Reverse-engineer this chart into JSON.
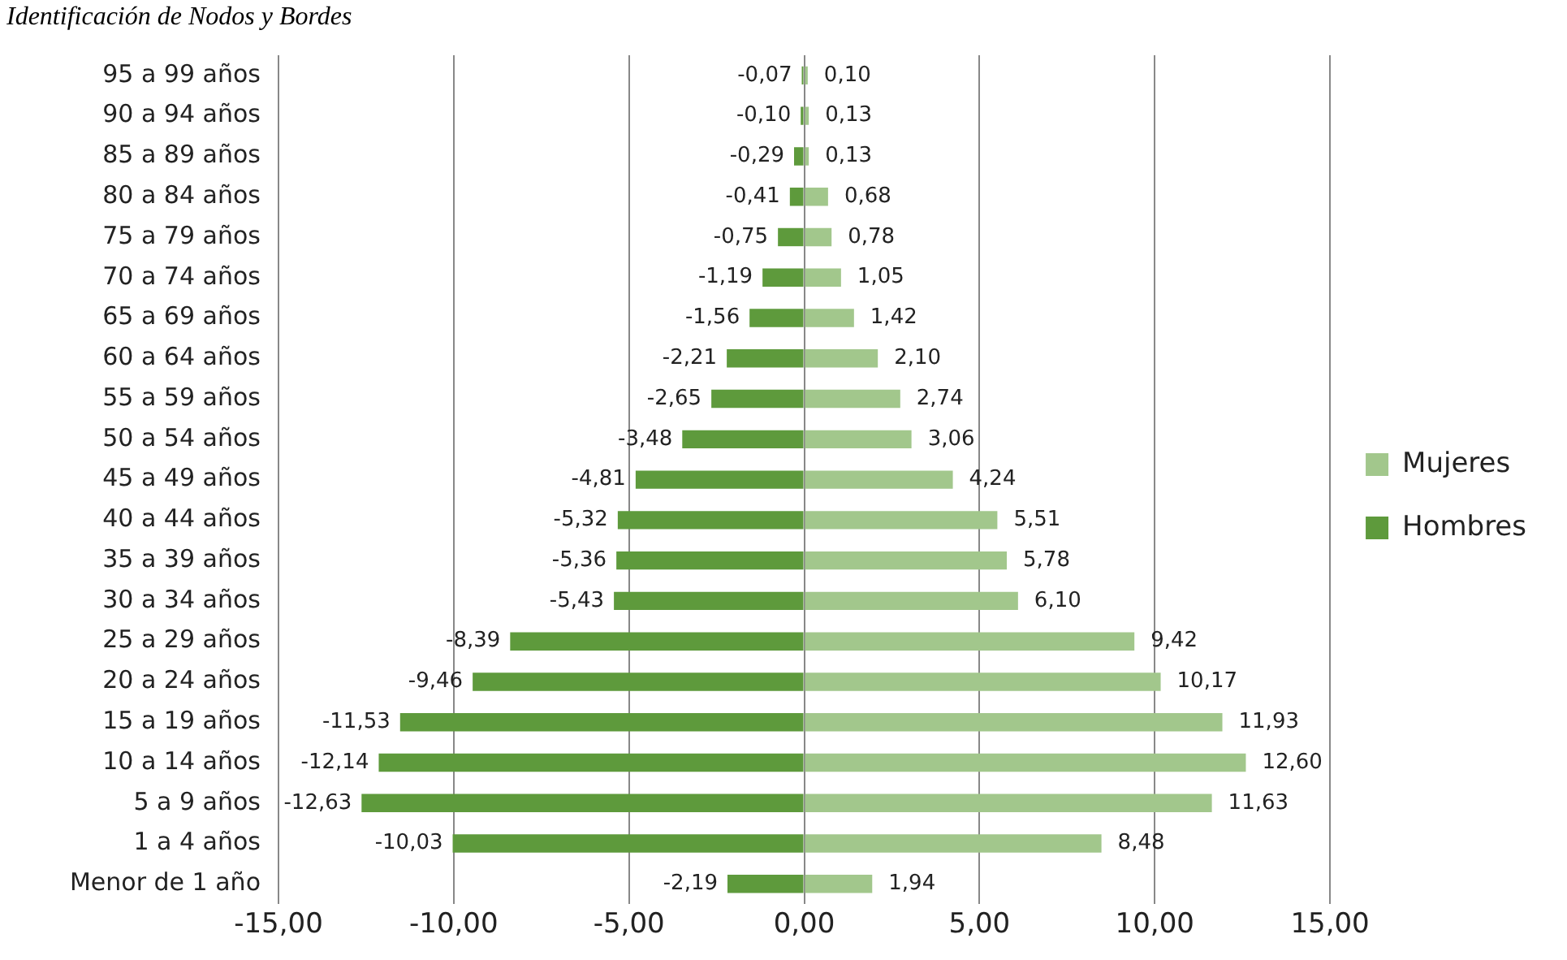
{
  "chart_data": {
    "type": "bar",
    "orientation": "horizontal",
    "stacked": true,
    "title": "Identificación de Nodos y Bordes",
    "categories": [
      "95 a 99 años",
      "90 a 94 años",
      "85 a 89 años",
      "80 a 84 años",
      "75 a 79 años",
      "70 a 74 años",
      "65 a 69 años",
      "60 a 64 años",
      "55 a 59 años",
      "50 a 54 años",
      "45 a 49 años",
      "40 a 44 años",
      "35 a 39 años",
      "30 a 34 años",
      "25 a 29 años",
      "20 a 24 años",
      "15 a 19 años",
      "10 a 14 años",
      "5 a 9 años",
      "1 a 4 años",
      "Menor de 1 año"
    ],
    "series": [
      {
        "name": "Mujeres",
        "color": "#a2c78c",
        "values": [
          0.1,
          0.13,
          0.13,
          0.68,
          0.78,
          1.05,
          1.42,
          2.1,
          2.74,
          3.06,
          4.24,
          5.51,
          5.78,
          6.1,
          9.42,
          10.17,
          11.93,
          12.6,
          11.63,
          8.48,
          1.94
        ],
        "value_labels": [
          "0,10",
          "0,13",
          "0,13",
          "0,68",
          "0,78",
          "1,05",
          "1,42",
          "2,10",
          "2,74",
          "3,06",
          "4,24",
          "5,51",
          "5,78",
          "6,10",
          "9,42",
          "10,17",
          "11,93",
          "12,60",
          "11,63",
          "8,48",
          "1,94"
        ]
      },
      {
        "name": "Hombres",
        "color": "#5e9a3c",
        "values": [
          -0.07,
          -0.1,
          -0.29,
          -0.41,
          -0.75,
          -1.19,
          -1.56,
          -2.21,
          -2.65,
          -3.48,
          -4.81,
          -5.32,
          -5.36,
          -5.43,
          -8.39,
          -9.46,
          -11.53,
          -12.14,
          -12.63,
          -10.03,
          -2.19
        ],
        "value_labels": [
          "-0,07",
          "-0,10",
          "-0,29",
          "-0,41",
          "-0,75",
          "-1,19",
          "-1,56",
          "-2,21",
          "-2,65",
          "-3,48",
          "-4,81",
          "-5,32",
          "-5,36",
          "-5,43",
          "-8,39",
          "-9,46",
          "-11,53",
          "-12,14",
          "-12,63",
          "-10,03",
          "-2,19"
        ]
      }
    ],
    "xlim": [
      -15,
      15
    ],
    "xticks": [
      {
        "value": -15,
        "label": "-15,00"
      },
      {
        "value": -10,
        "label": "-10,00"
      },
      {
        "value": -5,
        "label": "-5,00"
      },
      {
        "value": 0,
        "label": "0,00"
      },
      {
        "value": 5,
        "label": "5,00"
      },
      {
        "value": 10,
        "label": "10,00"
      },
      {
        "value": 15,
        "label": "15,00"
      }
    ],
    "grid": "x",
    "legend": "right"
  }
}
